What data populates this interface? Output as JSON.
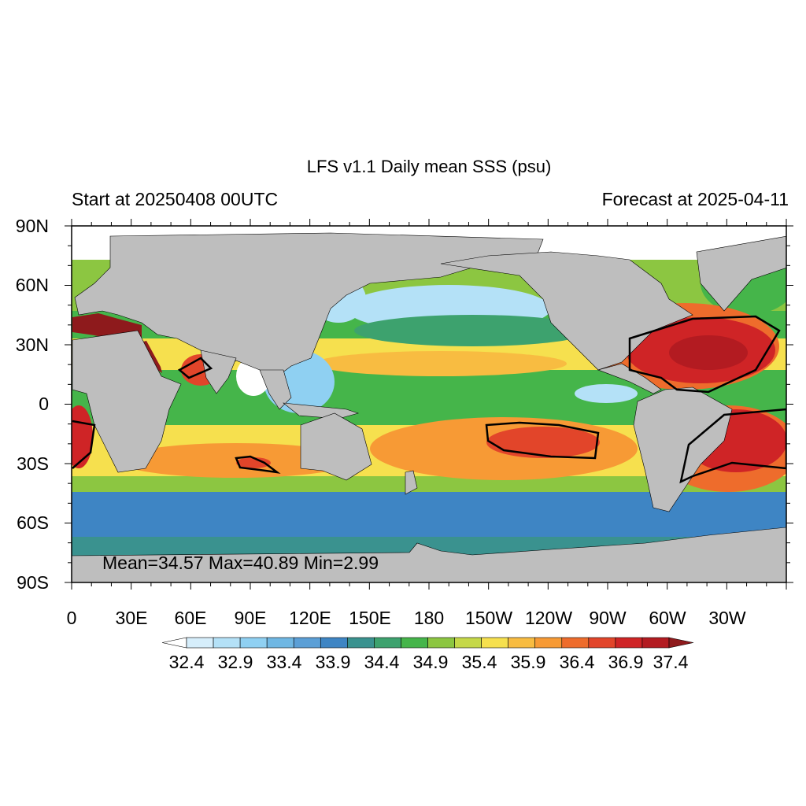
{
  "title": "LFS v1.1 Daily mean SSS (psu)",
  "subtitle_left": "Start at 20250408 00UTC",
  "subtitle_right": "Forecast at 2025-04-11",
  "stats": "Mean=34.57  Max=40.89  Min=2.99",
  "lat_labels": [
    "90N",
    "60N",
    "30N",
    "0",
    "30S",
    "60S",
    "90S"
  ],
  "lon_labels": [
    "0",
    "30E",
    "60E",
    "90E",
    "120E",
    "150E",
    "180",
    "150W",
    "120W",
    "90W",
    "60W",
    "30W"
  ],
  "colorbar": {
    "labels": [
      "32.4",
      "32.9",
      "33.4",
      "33.9",
      "34.4",
      "34.9",
      "35.4",
      "35.9",
      "36.4",
      "36.9",
      "37.4"
    ],
    "colors": [
      "#ffffff",
      "#d6eefb",
      "#b4e1f7",
      "#8fd0f2",
      "#6fb7e3",
      "#5b9fd6",
      "#3e85c4",
      "#3a928f",
      "#3da26e",
      "#45b54a",
      "#8cc641",
      "#c5d848",
      "#f6e04e",
      "#f8bc41",
      "#f79a35",
      "#ee6c2c",
      "#e2452a",
      "#cf2426",
      "#b31b21",
      "#8e1a1c"
    ]
  },
  "map": {
    "land_color": "#bebebe",
    "colors": {
      "deep_blue": "#3e85c4",
      "blue": "#5b9fd6",
      "teal": "#3a928f",
      "green": "#45b54a",
      "light_green": "#8cc641",
      "yellow": "#f6e04e",
      "orange": "#f79a35",
      "red": "#d62c26",
      "dark_red": "#a51b1f",
      "pale_blue": "#b4e1f7"
    }
  }
}
